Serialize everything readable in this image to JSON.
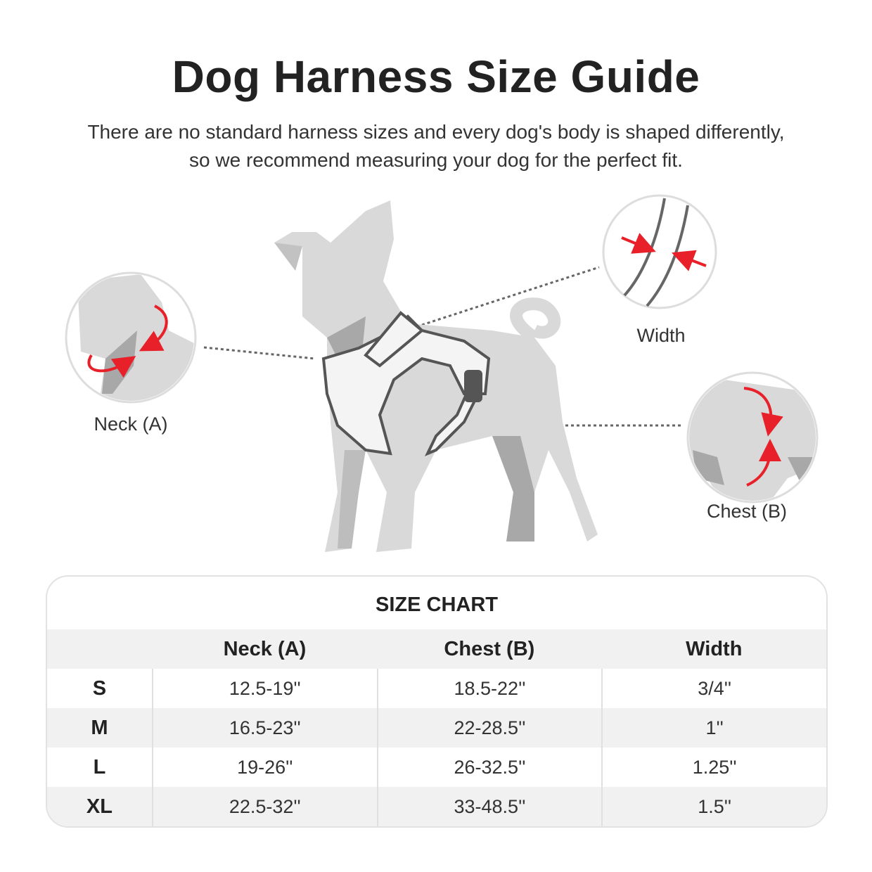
{
  "header": {
    "title": "Dog Harness Size Guide",
    "subtitle_line1": "There are no standard harness sizes and every dog's body is shaped differently,",
    "subtitle_line2": "so we recommend measuring your dog for the perfect fit."
  },
  "diagram": {
    "neck_label": "Neck (A)",
    "width_label": "Width",
    "chest_label": "Chest (B)",
    "arrow_color": "#e8202a",
    "dog_color": "#d9d9d9",
    "shadow_color": "#a8a8a8"
  },
  "size_chart": {
    "title": "SIZE CHART",
    "columns": [
      "",
      "Neck (A)",
      "Chest (B)",
      "Width"
    ],
    "rows": [
      {
        "size": "S",
        "neck": "12.5-19''",
        "chest": "18.5-22''",
        "width": "3/4''"
      },
      {
        "size": "M",
        "neck": "16.5-23''",
        "chest": "22-28.5''",
        "width": "1''"
      },
      {
        "size": "L",
        "neck": "19-26''",
        "chest": "26-32.5''",
        "width": "1.25''"
      },
      {
        "size": "XL",
        "neck": "22.5-32''",
        "chest": "33-48.5''",
        "width": "1.5''"
      }
    ]
  }
}
